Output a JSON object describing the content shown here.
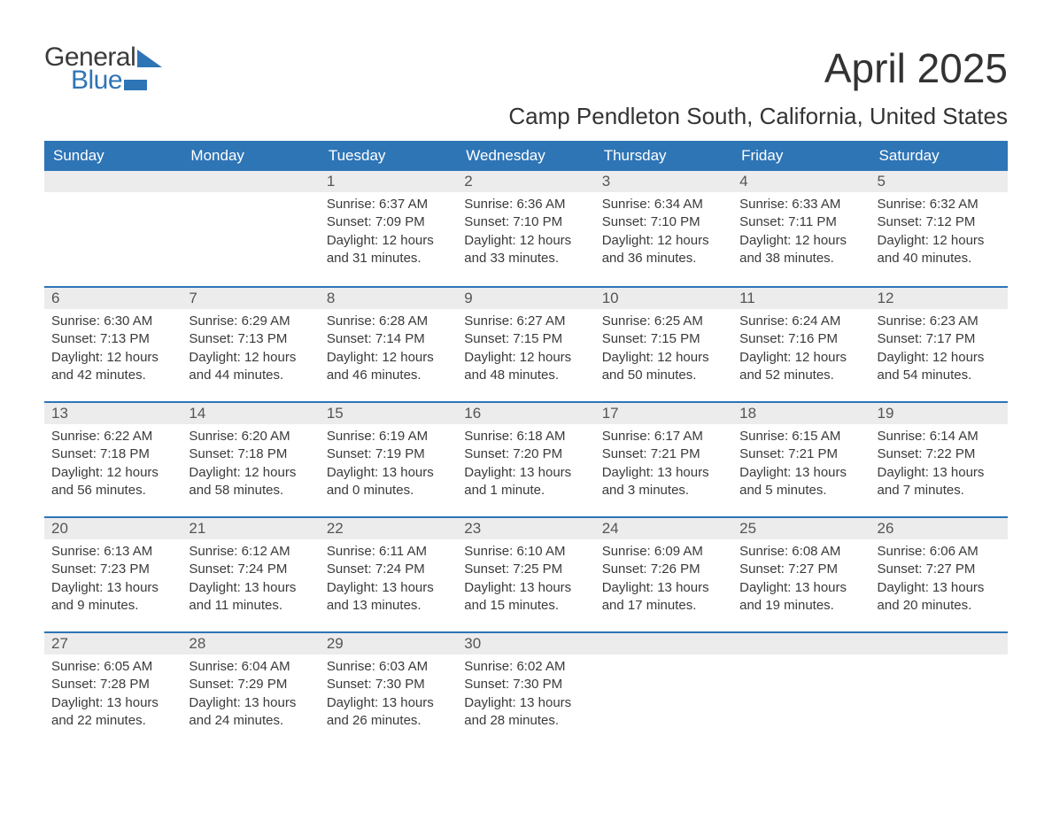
{
  "logo": {
    "top": "General",
    "bottom": "Blue"
  },
  "title": "April 2025",
  "location": "Camp Pendleton South, California, United States",
  "colors": {
    "accent": "#2e75b6",
    "daybar": "#ececec",
    "text": "#333333"
  },
  "weekdays": [
    "Sunday",
    "Monday",
    "Tuesday",
    "Wednesday",
    "Thursday",
    "Friday",
    "Saturday"
  ],
  "weeks": [
    [
      null,
      null,
      {
        "n": "1",
        "sr": "Sunrise: 6:37 AM",
        "ss": "Sunset: 7:09 PM",
        "d1": "Daylight: 12 hours",
        "d2": "and 31 minutes."
      },
      {
        "n": "2",
        "sr": "Sunrise: 6:36 AM",
        "ss": "Sunset: 7:10 PM",
        "d1": "Daylight: 12 hours",
        "d2": "and 33 minutes."
      },
      {
        "n": "3",
        "sr": "Sunrise: 6:34 AM",
        "ss": "Sunset: 7:10 PM",
        "d1": "Daylight: 12 hours",
        "d2": "and 36 minutes."
      },
      {
        "n": "4",
        "sr": "Sunrise: 6:33 AM",
        "ss": "Sunset: 7:11 PM",
        "d1": "Daylight: 12 hours",
        "d2": "and 38 minutes."
      },
      {
        "n": "5",
        "sr": "Sunrise: 6:32 AM",
        "ss": "Sunset: 7:12 PM",
        "d1": "Daylight: 12 hours",
        "d2": "and 40 minutes."
      }
    ],
    [
      {
        "n": "6",
        "sr": "Sunrise: 6:30 AM",
        "ss": "Sunset: 7:13 PM",
        "d1": "Daylight: 12 hours",
        "d2": "and 42 minutes."
      },
      {
        "n": "7",
        "sr": "Sunrise: 6:29 AM",
        "ss": "Sunset: 7:13 PM",
        "d1": "Daylight: 12 hours",
        "d2": "and 44 minutes."
      },
      {
        "n": "8",
        "sr": "Sunrise: 6:28 AM",
        "ss": "Sunset: 7:14 PM",
        "d1": "Daylight: 12 hours",
        "d2": "and 46 minutes."
      },
      {
        "n": "9",
        "sr": "Sunrise: 6:27 AM",
        "ss": "Sunset: 7:15 PM",
        "d1": "Daylight: 12 hours",
        "d2": "and 48 minutes."
      },
      {
        "n": "10",
        "sr": "Sunrise: 6:25 AM",
        "ss": "Sunset: 7:15 PM",
        "d1": "Daylight: 12 hours",
        "d2": "and 50 minutes."
      },
      {
        "n": "11",
        "sr": "Sunrise: 6:24 AM",
        "ss": "Sunset: 7:16 PM",
        "d1": "Daylight: 12 hours",
        "d2": "and 52 minutes."
      },
      {
        "n": "12",
        "sr": "Sunrise: 6:23 AM",
        "ss": "Sunset: 7:17 PM",
        "d1": "Daylight: 12 hours",
        "d2": "and 54 minutes."
      }
    ],
    [
      {
        "n": "13",
        "sr": "Sunrise: 6:22 AM",
        "ss": "Sunset: 7:18 PM",
        "d1": "Daylight: 12 hours",
        "d2": "and 56 minutes."
      },
      {
        "n": "14",
        "sr": "Sunrise: 6:20 AM",
        "ss": "Sunset: 7:18 PM",
        "d1": "Daylight: 12 hours",
        "d2": "and 58 minutes."
      },
      {
        "n": "15",
        "sr": "Sunrise: 6:19 AM",
        "ss": "Sunset: 7:19 PM",
        "d1": "Daylight: 13 hours",
        "d2": "and 0 minutes."
      },
      {
        "n": "16",
        "sr": "Sunrise: 6:18 AM",
        "ss": "Sunset: 7:20 PM",
        "d1": "Daylight: 13 hours",
        "d2": "and 1 minute."
      },
      {
        "n": "17",
        "sr": "Sunrise: 6:17 AM",
        "ss": "Sunset: 7:21 PM",
        "d1": "Daylight: 13 hours",
        "d2": "and 3 minutes."
      },
      {
        "n": "18",
        "sr": "Sunrise: 6:15 AM",
        "ss": "Sunset: 7:21 PM",
        "d1": "Daylight: 13 hours",
        "d2": "and 5 minutes."
      },
      {
        "n": "19",
        "sr": "Sunrise: 6:14 AM",
        "ss": "Sunset: 7:22 PM",
        "d1": "Daylight: 13 hours",
        "d2": "and 7 minutes."
      }
    ],
    [
      {
        "n": "20",
        "sr": "Sunrise: 6:13 AM",
        "ss": "Sunset: 7:23 PM",
        "d1": "Daylight: 13 hours",
        "d2": "and 9 minutes."
      },
      {
        "n": "21",
        "sr": "Sunrise: 6:12 AM",
        "ss": "Sunset: 7:24 PM",
        "d1": "Daylight: 13 hours",
        "d2": "and 11 minutes."
      },
      {
        "n": "22",
        "sr": "Sunrise: 6:11 AM",
        "ss": "Sunset: 7:24 PM",
        "d1": "Daylight: 13 hours",
        "d2": "and 13 minutes."
      },
      {
        "n": "23",
        "sr": "Sunrise: 6:10 AM",
        "ss": "Sunset: 7:25 PM",
        "d1": "Daylight: 13 hours",
        "d2": "and 15 minutes."
      },
      {
        "n": "24",
        "sr": "Sunrise: 6:09 AM",
        "ss": "Sunset: 7:26 PM",
        "d1": "Daylight: 13 hours",
        "d2": "and 17 minutes."
      },
      {
        "n": "25",
        "sr": "Sunrise: 6:08 AM",
        "ss": "Sunset: 7:27 PM",
        "d1": "Daylight: 13 hours",
        "d2": "and 19 minutes."
      },
      {
        "n": "26",
        "sr": "Sunrise: 6:06 AM",
        "ss": "Sunset: 7:27 PM",
        "d1": "Daylight: 13 hours",
        "d2": "and 20 minutes."
      }
    ],
    [
      {
        "n": "27",
        "sr": "Sunrise: 6:05 AM",
        "ss": "Sunset: 7:28 PM",
        "d1": "Daylight: 13 hours",
        "d2": "and 22 minutes."
      },
      {
        "n": "28",
        "sr": "Sunrise: 6:04 AM",
        "ss": "Sunset: 7:29 PM",
        "d1": "Daylight: 13 hours",
        "d2": "and 24 minutes."
      },
      {
        "n": "29",
        "sr": "Sunrise: 6:03 AM",
        "ss": "Sunset: 7:30 PM",
        "d1": "Daylight: 13 hours",
        "d2": "and 26 minutes."
      },
      {
        "n": "30",
        "sr": "Sunrise: 6:02 AM",
        "ss": "Sunset: 7:30 PM",
        "d1": "Daylight: 13 hours",
        "d2": "and 28 minutes."
      },
      null,
      null,
      null
    ]
  ]
}
